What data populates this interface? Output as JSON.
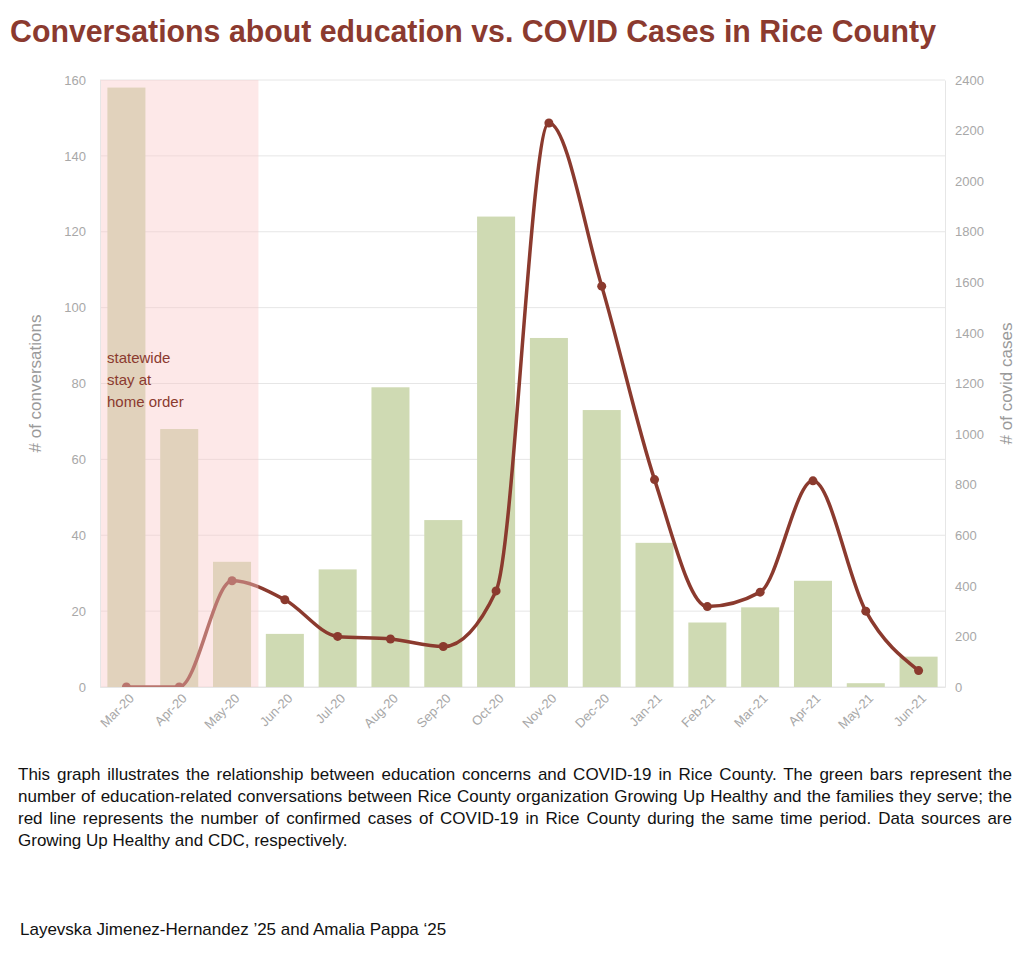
{
  "chart_data": {
    "type": "bar",
    "title": "Conversations about education vs. COVID Cases in Rice County",
    "categories": [
      "Mar-20",
      "Apr-20",
      "May-20",
      "Jun-20",
      "Jul-20",
      "Aug-20",
      "Sep-20",
      "Oct-20",
      "Nov-20",
      "Dec-20",
      "Jan-21",
      "Feb-21",
      "Mar-21",
      "Apr-21",
      "May-21",
      "Jun-21"
    ],
    "series": [
      {
        "type": "bar",
        "color": "#cfdab3",
        "values": [
          158,
          68,
          33,
          14,
          31,
          79,
          44,
          124,
          92,
          73,
          38,
          17,
          21,
          28,
          1,
          8
        ]
      },
      {
        "type": "line",
        "axis": "y2",
        "color": "#8b3a2e",
        "marker": "circle",
        "values": [
          0,
          0,
          420,
          345,
          200,
          190,
          160,
          380,
          2230,
          1585,
          820,
          318,
          375,
          815,
          300,
          65
        ]
      }
    ],
    "y_label": "# of conversations",
    "y2_label": "# of covid cases",
    "ylim": [
      0,
      160
    ],
    "yticks": [
      0,
      20,
      40,
      60,
      80,
      100,
      120,
      140,
      160
    ],
    "y2lim": [
      0,
      2400
    ],
    "y2ticks": [
      0,
      200,
      400,
      600,
      800,
      1000,
      1200,
      1400,
      1600,
      1800,
      2000,
      2200,
      2400
    ],
    "grid": true,
    "annotations": [
      {
        "text": [
          "statewide",
          "stay at",
          "home order"
        ],
        "x_start": "Mar-20",
        "x_end": "May-20"
      }
    ],
    "caption": "This graph illustrates the relationship between education concerns and COVID-19 in Rice County. The green bars represent the number of education-related conversations between Rice County organization Growing Up Healthy and the families they serve; the red line represents the number of confirmed cases of COVID-19 in Rice County during the same time period. Data sources are Growing Up Healthy and CDC, respectively.",
    "credit": "Layevska Jimenez-Hernandez ’25 and Amalia Pappa ‘25"
  }
}
